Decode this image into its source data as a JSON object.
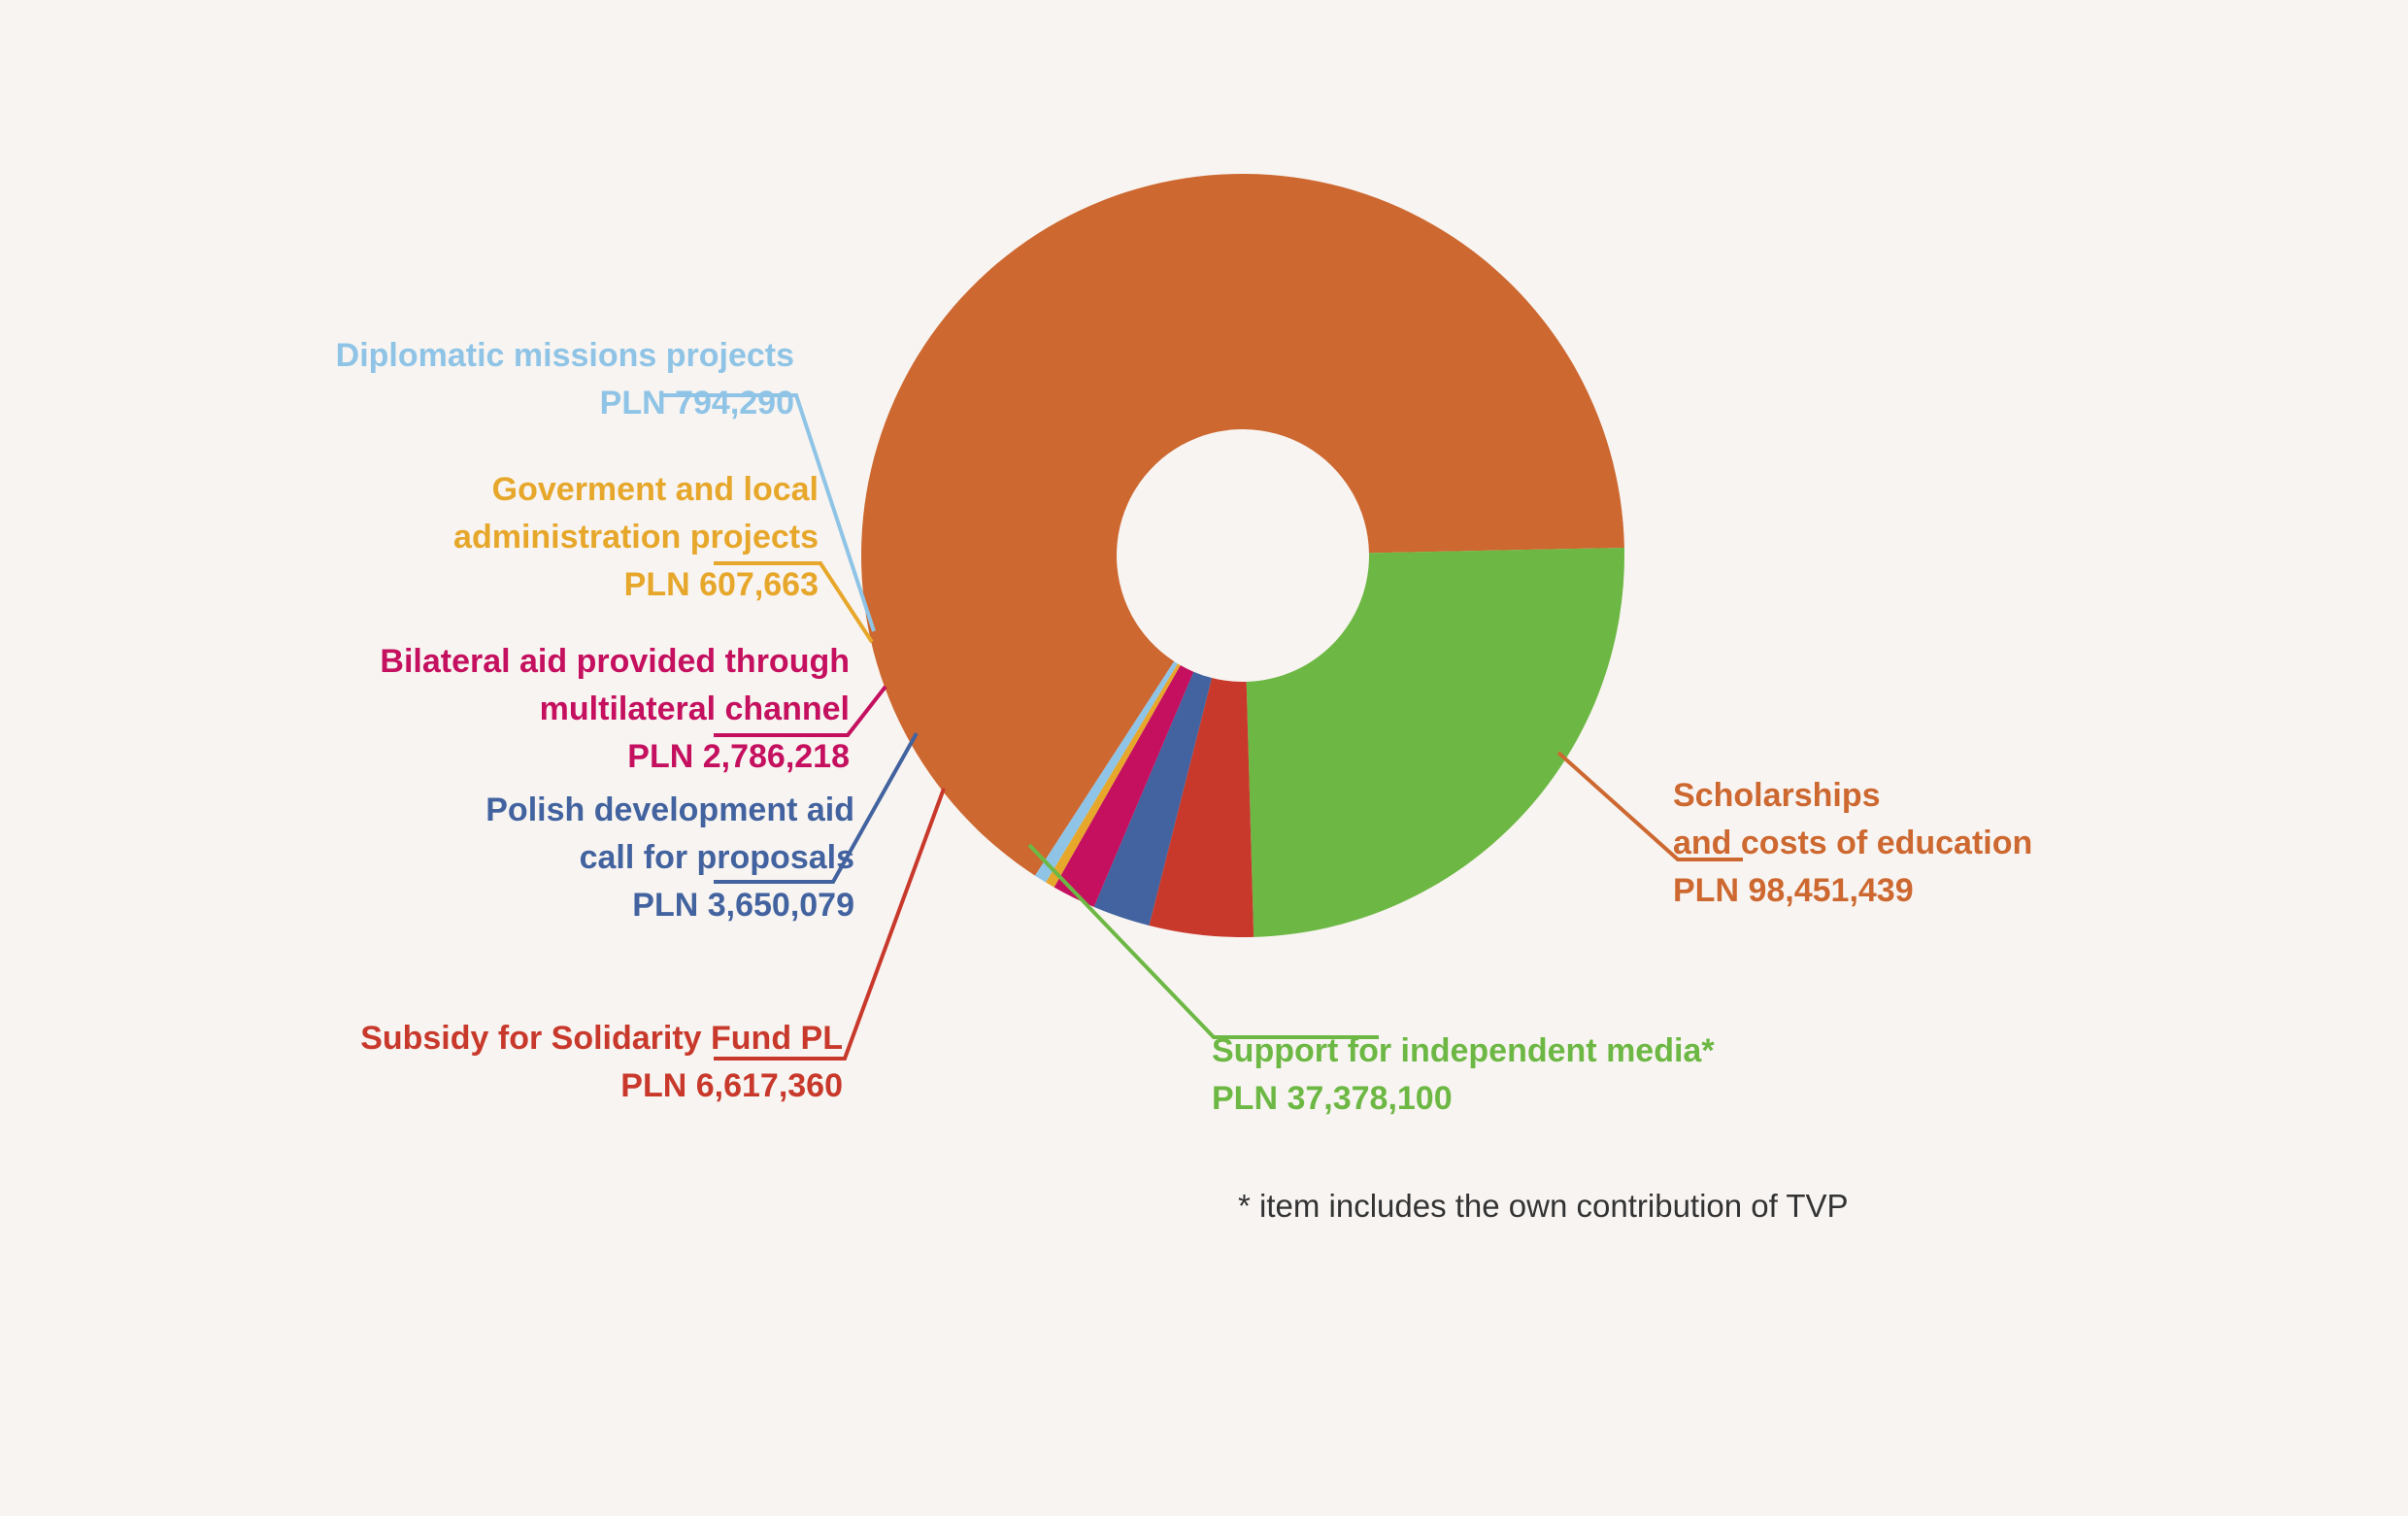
{
  "chart_data": {
    "type": "pie",
    "variant": "donut",
    "categories": [
      "Scholarships and costs of education",
      "Support for independent media*",
      "Subsidy for Solidarity Fund PL",
      "Polish development aid call for proposals",
      "Bilateral aid provided through multilateral channel",
      "Goverment and local administration projects",
      "Diplomatic missions projects"
    ],
    "values": [
      98451439,
      37378100,
      6617360,
      3650079,
      2786218,
      607663,
      794290
    ],
    "slices": [
      {
        "key": "scholarships",
        "lines": [
          "Scholarships",
          "and costs of education"
        ],
        "value_text": "PLN 98,451,439",
        "color": "#cd6830"
      },
      {
        "key": "media",
        "lines": [
          "Support for independent media*"
        ],
        "value_text": "PLN 37,378,100",
        "color": "#6db844"
      },
      {
        "key": "solidarity",
        "lines": [
          "Subsidy for Solidarity Fund PL"
        ],
        "value_text": "PLN 6,617,360",
        "color": "#c8392c"
      },
      {
        "key": "call",
        "lines": [
          "Polish development aid",
          "call for proposals"
        ],
        "value_text": "PLN 3,650,079",
        "color": "#42639f"
      },
      {
        "key": "bilateral",
        "lines": [
          "Bilateral aid provided through",
          "multilateral channel"
        ],
        "value_text": "PLN 2,786,218",
        "color": "#c4105f"
      },
      {
        "key": "government",
        "lines": [
          "Goverment and local",
          "administration projects"
        ],
        "value_text": "PLN 607,663",
        "color": "#e6a72b"
      },
      {
        "key": "diplomatic",
        "lines": [
          "Diplomatic missions projects"
        ],
        "value_text": "PLN 794,290",
        "color": "#8fc4e6"
      }
    ],
    "title": "",
    "legend": "none",
    "grid": false
  },
  "footnote": "* item includes the own contribution of TVP"
}
